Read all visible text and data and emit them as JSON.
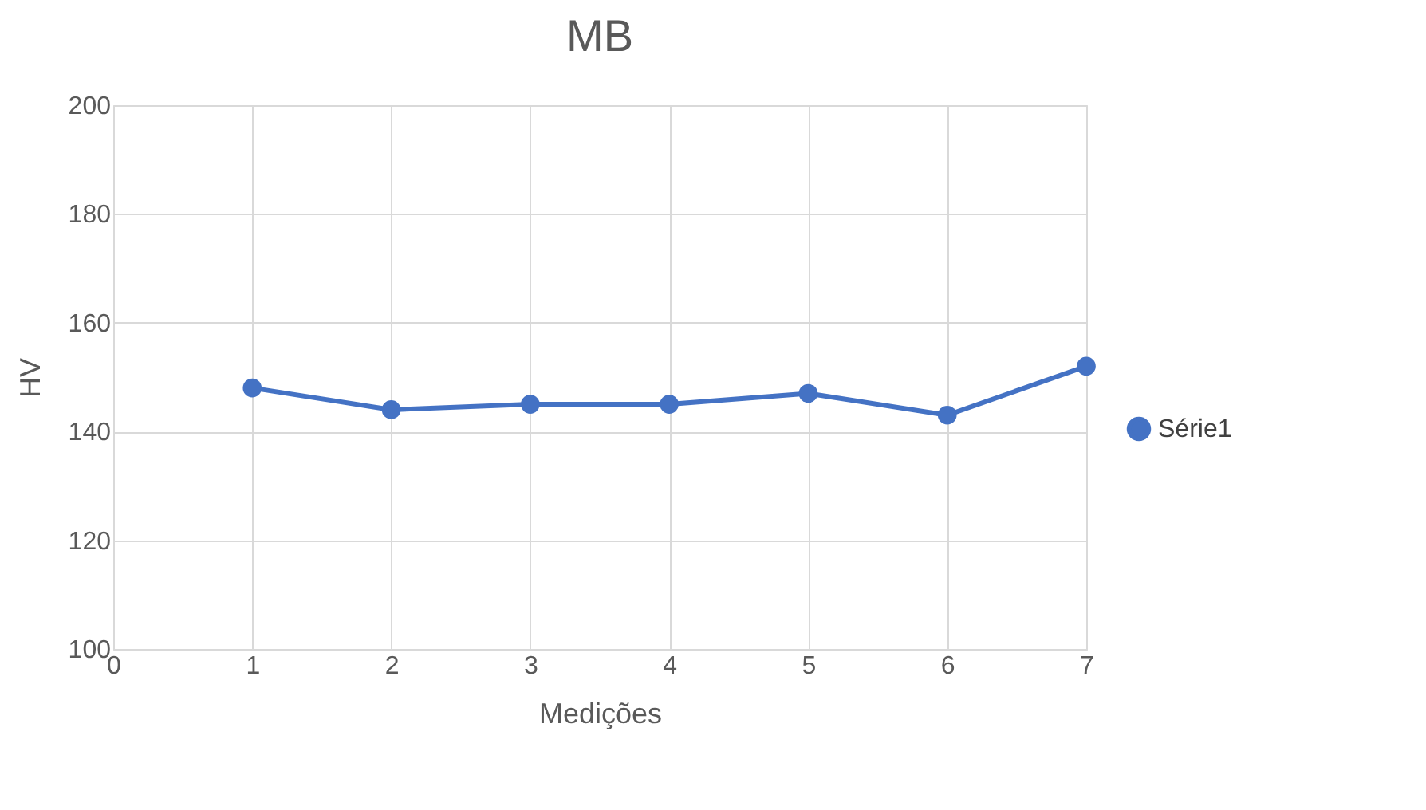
{
  "chart_data": {
    "type": "line",
    "title": "MB",
    "xlabel": "Medições",
    "ylabel": "HV",
    "x": [
      1,
      2,
      3,
      4,
      5,
      6,
      7
    ],
    "series": [
      {
        "name": "Série1",
        "color": "#4472c4",
        "values": [
          148,
          144,
          145,
          145,
          147,
          143,
          152
        ]
      }
    ],
    "xlim": [
      0,
      7
    ],
    "xticks": [
      0,
      1,
      2,
      3,
      4,
      5,
      6,
      7
    ],
    "ylim": [
      100,
      200
    ],
    "yticks": [
      100,
      120,
      140,
      160,
      180,
      200
    ],
    "grid": true,
    "legend": "right",
    "marker": "circle",
    "line_style": "solid"
  }
}
